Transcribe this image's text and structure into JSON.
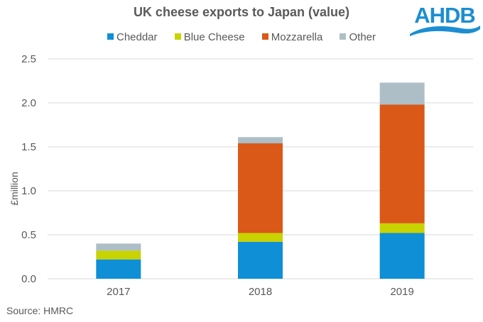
{
  "chart_data": {
    "type": "bar",
    "stacked": true,
    "title": "UK cheese exports to Japan (value)",
    "xlabel": "",
    "ylabel": "£million",
    "ylim": [
      0,
      2.5
    ],
    "yticks": [
      "0.0",
      "0.5",
      "1.0",
      "1.5",
      "2.0",
      "2.5"
    ],
    "ytick_values": [
      0,
      0.5,
      1.0,
      1.5,
      2.0,
      2.5
    ],
    "grid": true,
    "legend_position": "top",
    "categories": [
      "2017",
      "2018",
      "2019"
    ],
    "series": [
      {
        "name": "Cheddar",
        "color": "#0F8FD6",
        "values": [
          0.22,
          0.42,
          0.52
        ]
      },
      {
        "name": "Blue Cheese",
        "color": "#C8D300",
        "values": [
          0.1,
          0.1,
          0.11
        ]
      },
      {
        "name": "Mozzarella",
        "color": "#DA5918",
        "values": [
          0.0,
          1.02,
          1.35
        ]
      },
      {
        "name": "Other",
        "color": "#ADBEC6",
        "values": [
          0.08,
          0.07,
          0.25
        ]
      }
    ]
  },
  "logo": {
    "text": "AHDB",
    "color": "#1B8ED1"
  },
  "source": "Source: HMRC"
}
